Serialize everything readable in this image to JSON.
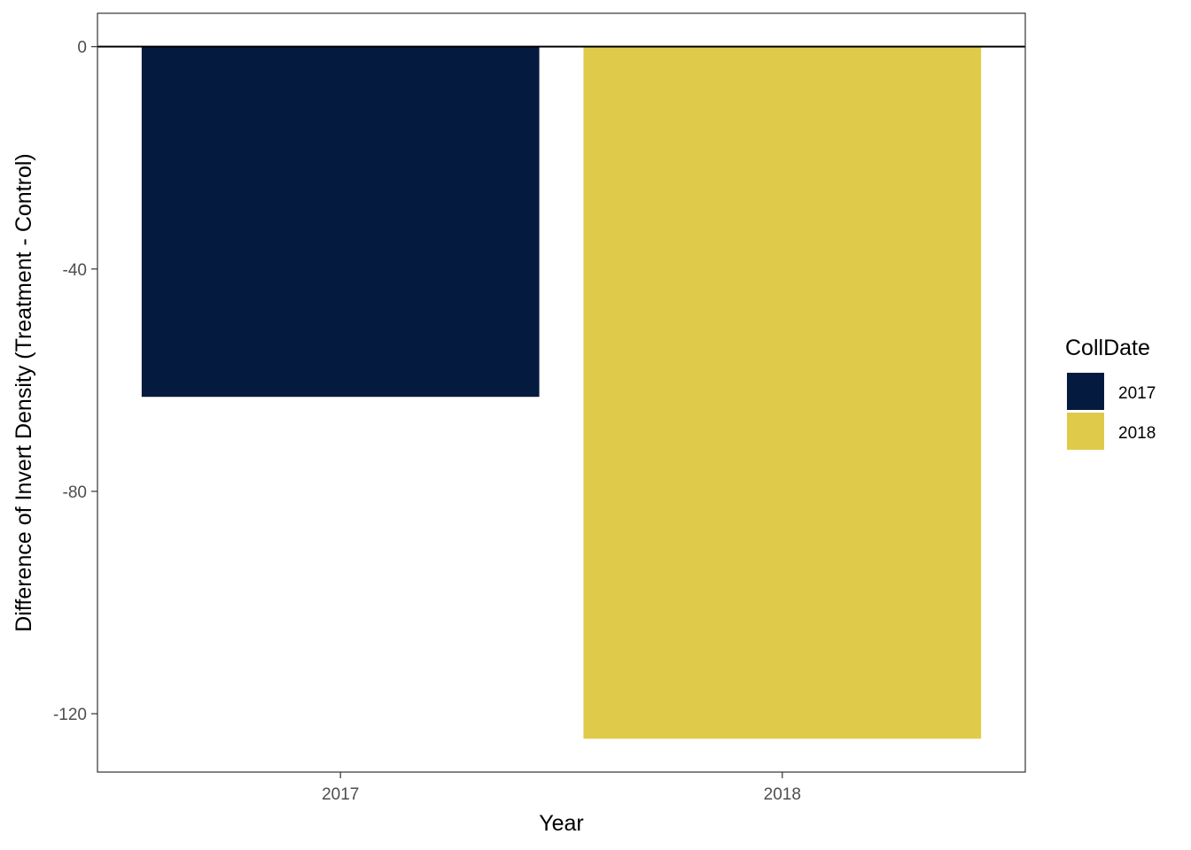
{
  "chart_data": {
    "type": "bar",
    "categories": [
      "2017",
      "2018"
    ],
    "values": [
      -63,
      -124.5
    ],
    "colors": [
      "#041A3F",
      "#E0CA4A"
    ],
    "title": "",
    "xlabel": "Year",
    "ylabel": "Difference of Invert Density (Treatment - Control)",
    "ylim": [
      -130.5,
      6
    ],
    "yticks": [
      0,
      -40,
      -80,
      -120
    ],
    "ytick_labels": [
      "0",
      "-40",
      "-80",
      "-120"
    ],
    "reference_line": 0,
    "grid": false,
    "legend": {
      "title": "CollDate",
      "placement": "right",
      "entries": [
        "2017",
        "2018"
      ]
    }
  }
}
